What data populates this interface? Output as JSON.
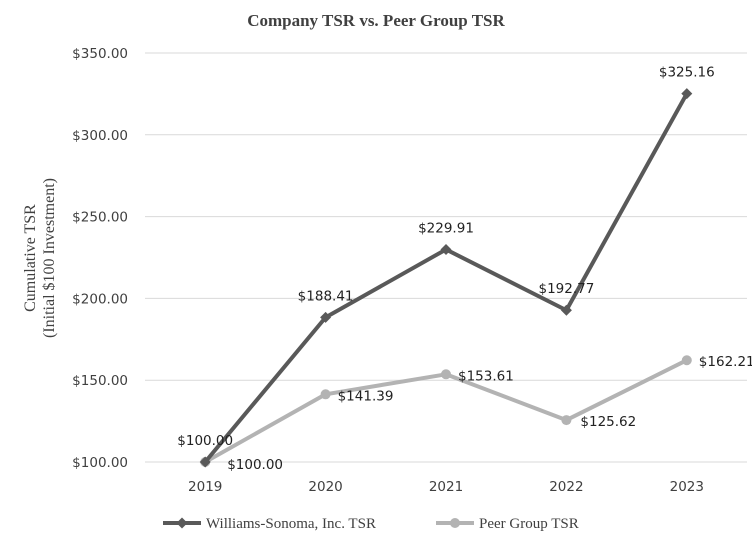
{
  "chart_data": {
    "type": "line",
    "title": "Company TSR vs. Peer Group TSR",
    "xlabel": "",
    "ylabel": [
      "Cumulative TSR",
      "(Initial $100 Investment)"
    ],
    "categories": [
      "2019",
      "2020",
      "2021",
      "2022",
      "2023"
    ],
    "ylim": [
      100,
      350
    ],
    "yticks": [
      100,
      150,
      200,
      250,
      300,
      350
    ],
    "ytick_labels": [
      "$100.00",
      "$150.00",
      "$200.00",
      "$250.00",
      "$300.00",
      "$350.00"
    ],
    "grid": true,
    "legend_position": "bottom",
    "series": [
      {
        "name": "Williams-Sonoma, Inc. TSR",
        "color": "#595959",
        "marker": "diamond",
        "values": [
          100.0,
          188.41,
          229.91,
          192.77,
          325.16
        ],
        "labels": [
          "$100.00",
          "$188.41",
          "$229.91",
          "$192.77",
          "$325.16"
        ]
      },
      {
        "name": "Peer Group TSR",
        "color": "#b3b3b3",
        "marker": "circle",
        "values": [
          100.0,
          141.39,
          153.61,
          125.62,
          162.21
        ],
        "labels": [
          "$100.00",
          "$141.39",
          "$153.61",
          "$125.62",
          "$162.21"
        ]
      }
    ]
  }
}
